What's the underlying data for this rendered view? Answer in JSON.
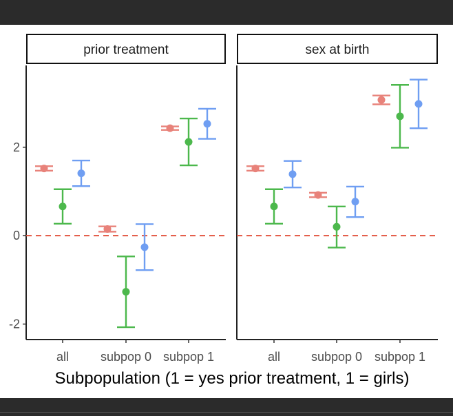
{
  "chart_data": {
    "type": "errorbar",
    "xlabel": "Subpopulation (1 = yes prior treatment, 1 = girls)",
    "ylabel": "",
    "ylim": [
      -2.35,
      3.85
    ],
    "yticks": [
      -2,
      0,
      2
    ],
    "ytick_labels": [
      "-2",
      "0",
      "2"
    ],
    "reference_line": {
      "y": 0,
      "style": "dashed",
      "color": "#e2533f"
    },
    "grid": false,
    "legend": "none",
    "panels": [
      {
        "title": "prior treatment",
        "categories": [
          "all",
          "subpop 0",
          "subpop 1"
        ],
        "series": [
          {
            "color": "#e8827a",
            "estimate": [
              1.52,
              0.15,
              2.43
            ],
            "lower": [
              1.47,
              0.09,
              2.39
            ],
            "upper": [
              1.57,
              0.21,
              2.47
            ]
          },
          {
            "color": "#4cb84c",
            "estimate": [
              0.66,
              -1.27,
              2.12
            ],
            "lower": [
              0.27,
              -2.07,
              1.59
            ],
            "upper": [
              1.05,
              -0.47,
              2.65
            ]
          },
          {
            "color": "#6f9ef2",
            "estimate": [
              1.41,
              -0.26,
              2.53
            ],
            "lower": [
              1.12,
              -0.78,
              2.19
            ],
            "upper": [
              1.7,
              0.26,
              2.87
            ]
          }
        ]
      },
      {
        "title": "sex at birth",
        "categories": [
          "all",
          "subpop 0",
          "subpop 1"
        ],
        "series": [
          {
            "color": "#e8827a",
            "estimate": [
              1.52,
              0.92,
              3.07
            ],
            "lower": [
              1.47,
              0.87,
              2.97
            ],
            "upper": [
              1.57,
              0.97,
              3.17
            ]
          },
          {
            "color": "#4cb84c",
            "estimate": [
              0.66,
              0.2,
              2.7
            ],
            "lower": [
              0.27,
              -0.27,
              1.99
            ],
            "upper": [
              1.05,
              0.66,
              3.41
            ]
          },
          {
            "color": "#6f9ef2",
            "estimate": [
              1.39,
              0.77,
              2.98
            ],
            "lower": [
              1.09,
              0.42,
              2.43
            ],
            "upper": [
              1.69,
              1.11,
              3.53
            ]
          }
        ]
      }
    ]
  }
}
